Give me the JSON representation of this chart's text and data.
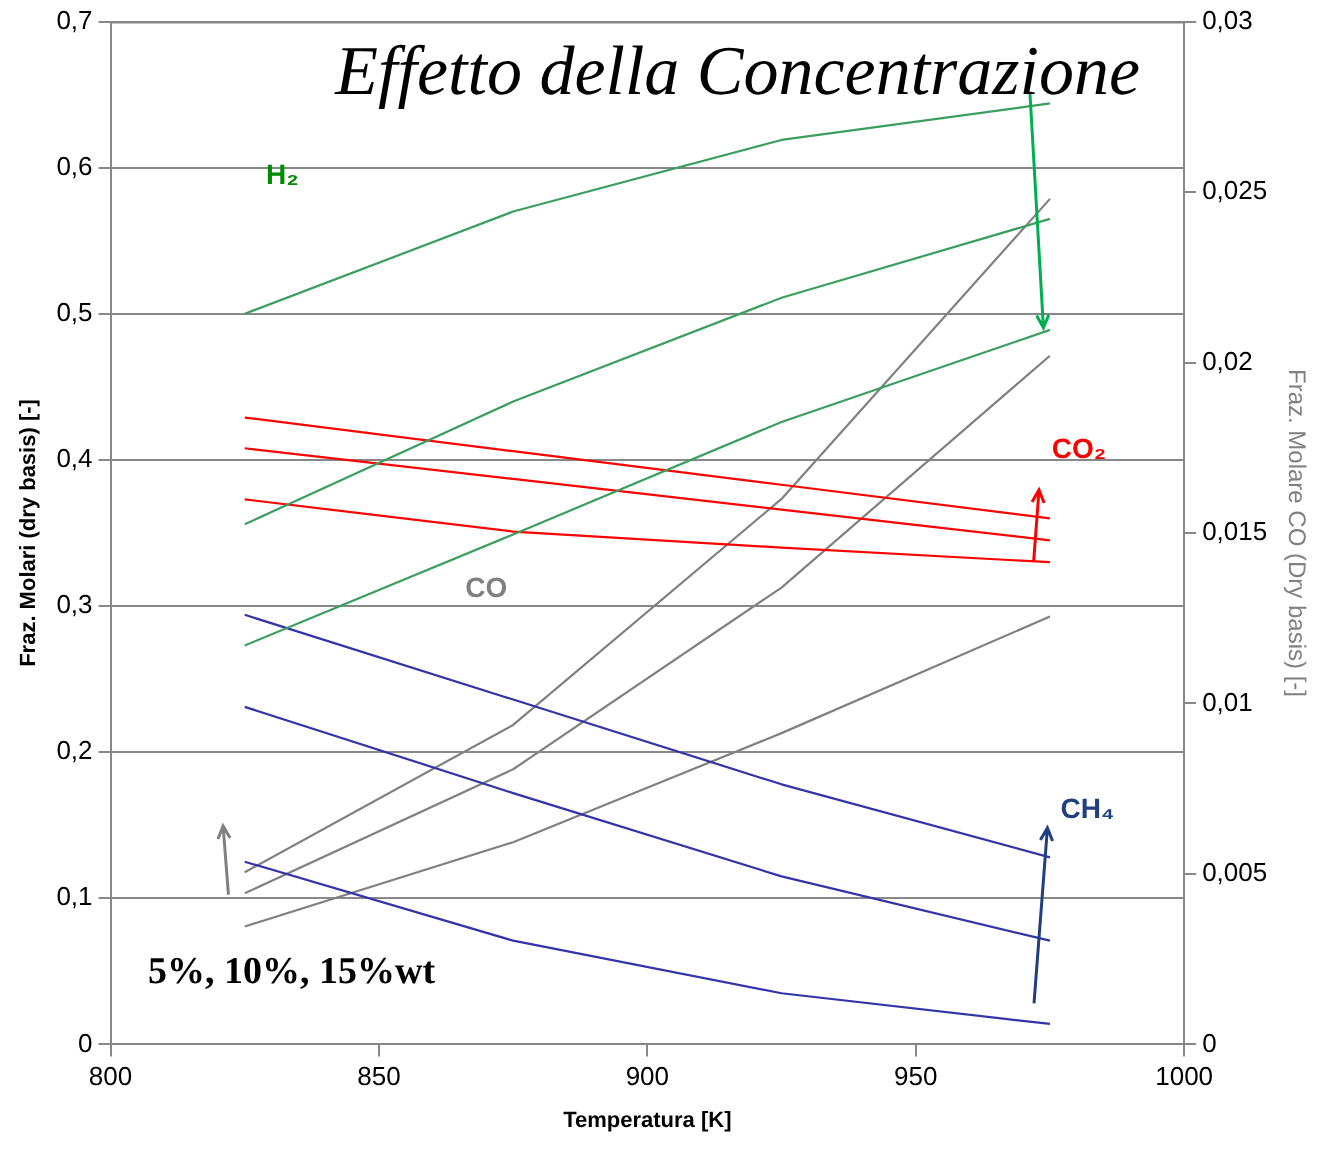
{
  "chart_data": {
    "type": "line",
    "title": "Effetto della Concentrazione",
    "xlabel": "Temperatura [K]",
    "ylabel": "Fraz. Molari (dry basis) [-]",
    "y2label": "Fraz. Molare CO (Dry basis) [-]",
    "x": [
      825,
      875,
      925,
      975
    ],
    "series": [
      {
        "color": "#3a9e5e",
        "values": [
          0.5,
          0.57,
          0.619,
          0.644
        ]
      },
      {
        "color": "#3a9e5e",
        "values": [
          0.356,
          0.44,
          0.511,
          0.565
        ]
      },
      {
        "color": "#3a9e5e",
        "values": [
          0.273,
          0.349,
          0.426,
          0.489
        ]
      },
      {
        "color": "#ff0000",
        "values": [
          0.429,
          0.406,
          0.383,
          0.36
        ]
      },
      {
        "color": "#ff0000",
        "values": [
          0.408,
          0.387,
          0.366,
          0.345
        ]
      },
      {
        "color": "#ff0000",
        "values": [
          0.373,
          0.351,
          0.34,
          0.33
        ]
      },
      {
        "color": "#3333aa",
        "values": [
          0.294,
          0.236,
          0.178,
          0.128
        ]
      },
      {
        "color": "#3333aa",
        "values": [
          0.231,
          0.172,
          0.115,
          0.071
        ]
      },
      {
        "color": "#3333aa",
        "values": [
          0.125,
          0.071,
          0.035,
          0.014
        ]
      },
      {
        "color": "#808080",
        "axis": "y2",
        "values": [
          0.00505,
          0.00937,
          0.016,
          0.0248
        ]
      },
      {
        "color": "#808080",
        "axis": "y2",
        "values": [
          0.00443,
          0.00807,
          0.0134,
          0.0202
        ]
      },
      {
        "color": "#808080",
        "axis": "y2",
        "values": [
          0.00346,
          0.00593,
          0.00913,
          0.01255
        ]
      }
    ],
    "annotations": [
      "H₂",
      "CO₂",
      "CO",
      "CH₄",
      "5%, 10%, 15%wt"
    ],
    "xlim": [
      800,
      1000
    ],
    "xticks": [
      800,
      850,
      900,
      950,
      1000
    ],
    "ylim": [
      0,
      0.7
    ],
    "yticks": [
      0,
      {
        "value": 0.1,
        "label": "0,1"
      },
      {
        "value": 0.2,
        "label": "0,2"
      },
      {
        "value": 0.3,
        "label": "0,3"
      },
      {
        "value": 0.4,
        "label": "0,4"
      },
      {
        "value": 0.5,
        "label": "0,5"
      },
      {
        "value": 0.6,
        "label": "0,6"
      },
      {
        "value": 0.7,
        "label": "0,7"
      }
    ],
    "y2lim": [
      0,
      0.03
    ],
    "y2ticks": [
      0,
      {
        "value": 0.005,
        "label": "0,005"
      },
      {
        "value": 0.01,
        "label": "0,01"
      },
      {
        "value": 0.015,
        "label": "0,015"
      },
      {
        "value": 0.02,
        "label": "0,02"
      },
      {
        "value": 0.025,
        "label": "0,025"
      },
      {
        "value": 0.03,
        "label": "0,03"
      }
    ],
    "grid": "y",
    "legend": false,
    "marker": "none",
    "line_style": "solid"
  }
}
